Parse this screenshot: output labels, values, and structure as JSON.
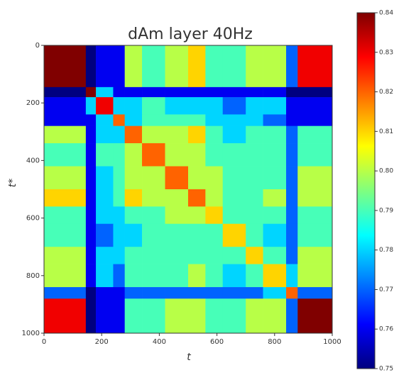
{
  "chart_data": {
    "type": "heatmap",
    "title": "dAm layer 40Hz",
    "xlabel": "t",
    "ylabel": "t*",
    "x_edges": [
      0,
      145,
      180,
      240,
      280,
      340,
      420,
      500,
      560,
      620,
      700,
      760,
      840,
      880,
      1000
    ],
    "y_edges": [
      0,
      145,
      180,
      240,
      280,
      340,
      420,
      500,
      560,
      620,
      700,
      760,
      840,
      880,
      1000
    ],
    "z": [
      [
        0.84,
        0.75,
        0.76,
        0.76,
        0.8,
        0.79,
        0.8,
        0.81,
        0.79,
        0.79,
        0.8,
        0.8,
        0.77,
        0.83
      ],
      [
        0.75,
        0.84,
        0.78,
        0.76,
        0.76,
        0.76,
        0.76,
        0.76,
        0.76,
        0.76,
        0.76,
        0.76,
        0.75,
        0.75
      ],
      [
        0.76,
        0.78,
        0.83,
        0.78,
        0.78,
        0.79,
        0.78,
        0.78,
        0.78,
        0.77,
        0.78,
        0.78,
        0.76,
        0.76
      ],
      [
        0.76,
        0.76,
        0.78,
        0.82,
        0.78,
        0.79,
        0.79,
        0.79,
        0.78,
        0.78,
        0.78,
        0.77,
        0.76,
        0.76
      ],
      [
        0.8,
        0.76,
        0.78,
        0.78,
        0.82,
        0.8,
        0.8,
        0.81,
        0.79,
        0.78,
        0.79,
        0.79,
        0.77,
        0.79
      ],
      [
        0.79,
        0.76,
        0.79,
        0.79,
        0.8,
        0.82,
        0.8,
        0.8,
        0.79,
        0.79,
        0.79,
        0.79,
        0.77,
        0.79
      ],
      [
        0.8,
        0.76,
        0.78,
        0.79,
        0.8,
        0.8,
        0.82,
        0.8,
        0.8,
        0.79,
        0.79,
        0.79,
        0.77,
        0.8
      ],
      [
        0.81,
        0.76,
        0.78,
        0.79,
        0.81,
        0.8,
        0.8,
        0.82,
        0.8,
        0.79,
        0.79,
        0.8,
        0.77,
        0.8
      ],
      [
        0.79,
        0.76,
        0.78,
        0.78,
        0.79,
        0.79,
        0.8,
        0.8,
        0.81,
        0.79,
        0.79,
        0.79,
        0.77,
        0.79
      ],
      [
        0.79,
        0.76,
        0.77,
        0.78,
        0.78,
        0.79,
        0.79,
        0.79,
        0.79,
        0.81,
        0.79,
        0.78,
        0.77,
        0.79
      ],
      [
        0.8,
        0.76,
        0.78,
        0.78,
        0.79,
        0.79,
        0.79,
        0.79,
        0.79,
        0.79,
        0.81,
        0.79,
        0.77,
        0.8
      ],
      [
        0.8,
        0.76,
        0.78,
        0.77,
        0.79,
        0.79,
        0.79,
        0.8,
        0.79,
        0.78,
        0.79,
        0.81,
        0.78,
        0.8
      ],
      [
        0.77,
        0.75,
        0.76,
        0.76,
        0.77,
        0.77,
        0.77,
        0.77,
        0.77,
        0.77,
        0.77,
        0.78,
        0.82,
        0.77
      ],
      [
        0.83,
        0.75,
        0.76,
        0.76,
        0.79,
        0.79,
        0.8,
        0.8,
        0.79,
        0.79,
        0.8,
        0.8,
        0.77,
        0.84
      ]
    ],
    "xlim": [
      0,
      1000
    ],
    "ylim": [
      1000,
      0
    ],
    "xticks": [
      0,
      200,
      400,
      600,
      800,
      1000
    ],
    "yticks": [
      0,
      200,
      400,
      600,
      800,
      1000
    ],
    "colormap": "jet",
    "clim": [
      0.75,
      0.84
    ],
    "cticks": [
      0.75,
      0.76,
      0.77,
      0.78,
      0.79,
      {
        "value": 0.8,
        "label": "0.80"
      },
      0.81,
      0.82,
      0.83,
      0.84
    ]
  }
}
